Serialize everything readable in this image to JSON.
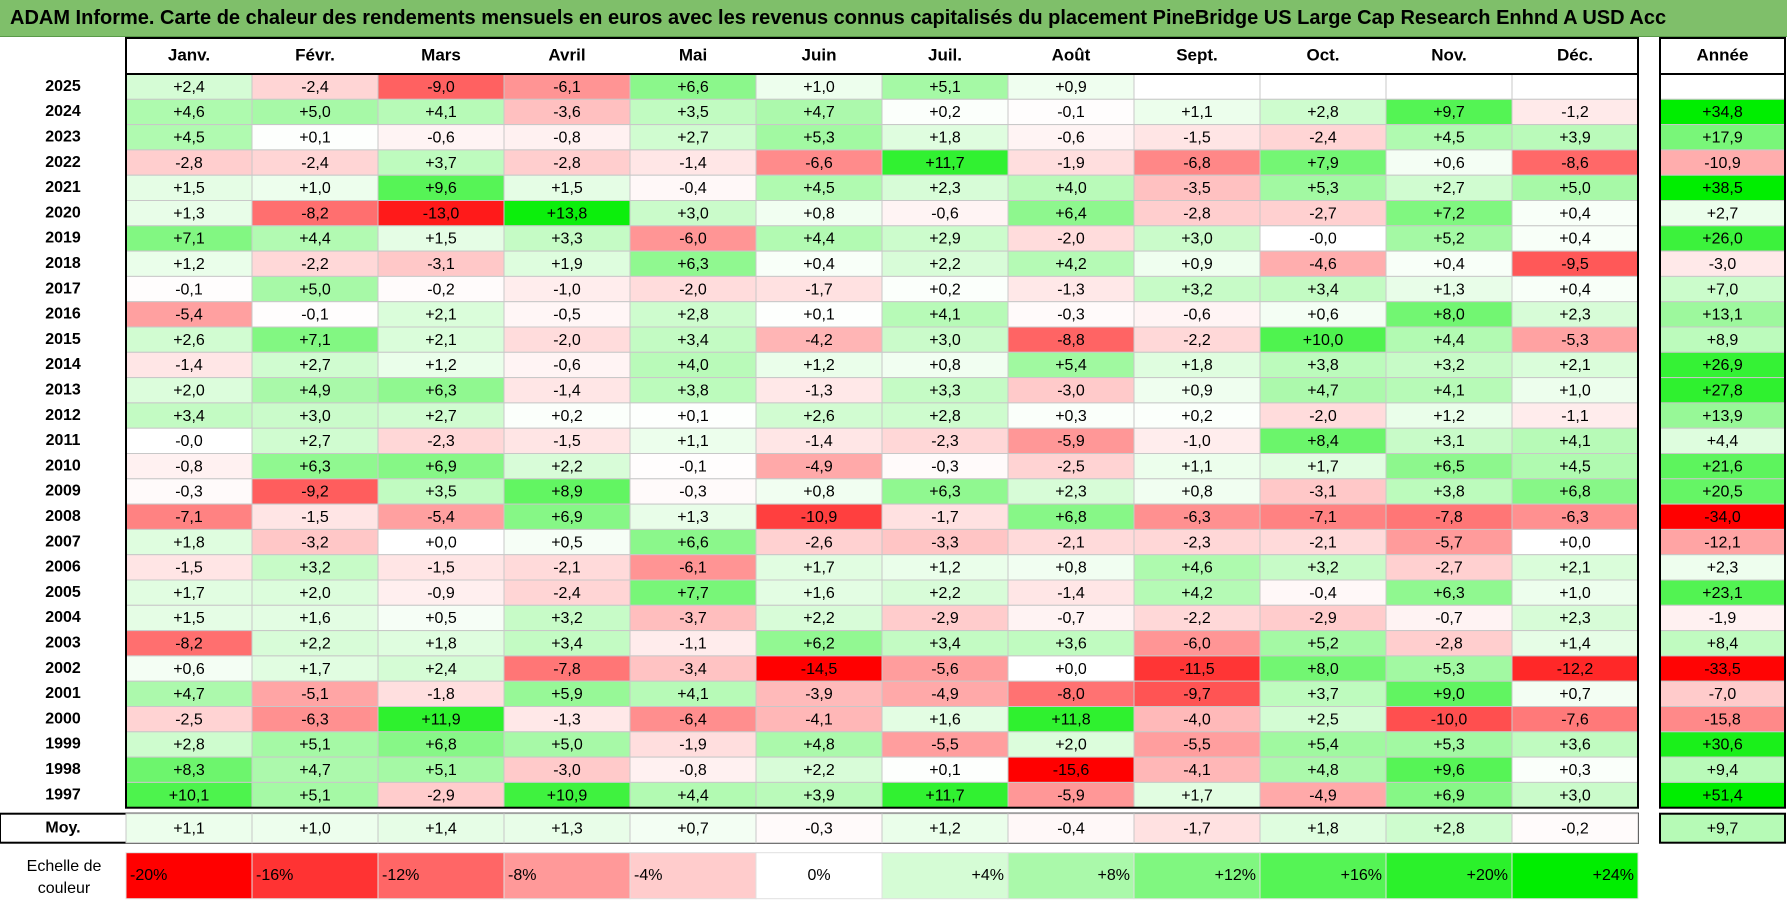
{
  "title": "ADAM Informe. Carte de chaleur des rendements mensuels en euros avec les revenus connus capitalisés du placement PineBridge US Large Cap Research Enhnd A USD Acc",
  "colors": {
    "title_bg": "#7fbf6a",
    "neg_max": "#ff0000",
    "pos_max": "#00ee00",
    "neutral": "#ffffff"
  },
  "chart_data": {
    "type": "heatmap",
    "months": [
      "Janv.",
      "Févr.",
      "Mars",
      "Avril",
      "Mai",
      "Juin",
      "Juil.",
      "Août",
      "Sept.",
      "Oct.",
      "Nov.",
      "Déc."
    ],
    "year_header": "Année",
    "rows": [
      {
        "year": "2025",
        "months": [
          "+2,4",
          "-2,4",
          "-9,0",
          "-6,1",
          "+6,6",
          "+1,0",
          "+5,1",
          "+0,9",
          "",
          "",
          "",
          ""
        ],
        "annual": ""
      },
      {
        "year": "2024",
        "months": [
          "+4,6",
          "+5,0",
          "+4,1",
          "-3,6",
          "+3,5",
          "+4,7",
          "+0,2",
          "-0,1",
          "+1,1",
          "+2,8",
          "+9,7",
          "-1,2"
        ],
        "annual": "+34,8"
      },
      {
        "year": "2023",
        "months": [
          "+4,5",
          "+0,1",
          "-0,6",
          "-0,8",
          "+2,7",
          "+5,3",
          "+1,8",
          "-0,6",
          "-1,5",
          "-2,4",
          "+4,5",
          "+3,9"
        ],
        "annual": "+17,9"
      },
      {
        "year": "2022",
        "months": [
          "-2,8",
          "-2,4",
          "+3,7",
          "-2,8",
          "-1,4",
          "-6,6",
          "+11,7",
          "-1,9",
          "-6,8",
          "+7,9",
          "+0,6",
          "-8,6"
        ],
        "annual": "-10,9"
      },
      {
        "year": "2021",
        "months": [
          "+1,5",
          "+1,0",
          "+9,6",
          "+1,5",
          "-0,4",
          "+4,5",
          "+2,3",
          "+4,0",
          "-3,5",
          "+5,3",
          "+2,7",
          "+5,0"
        ],
        "annual": "+38,5"
      },
      {
        "year": "2020",
        "months": [
          "+1,3",
          "-8,2",
          "-13,0",
          "+13,8",
          "+3,0",
          "+0,8",
          "-0,6",
          "+6,4",
          "-2,8",
          "-2,7",
          "+7,2",
          "+0,4"
        ],
        "annual": "+2,7"
      },
      {
        "year": "2019",
        "months": [
          "+7,1",
          "+4,4",
          "+1,5",
          "+3,3",
          "-6,0",
          "+4,4",
          "+2,9",
          "-2,0",
          "+3,0",
          "-0,0",
          "+5,2",
          "+0,4"
        ],
        "annual": "+26,0"
      },
      {
        "year": "2018",
        "months": [
          "+1,2",
          "-2,2",
          "-3,1",
          "+1,9",
          "+6,3",
          "+0,4",
          "+2,2",
          "+4,2",
          "+0,9",
          "-4,6",
          "+0,4",
          "-9,5"
        ],
        "annual": "-3,0"
      },
      {
        "year": "2017",
        "months": [
          "-0,1",
          "+5,0",
          "-0,2",
          "-1,0",
          "-2,0",
          "-1,7",
          "+0,2",
          "-1,3",
          "+3,2",
          "+3,4",
          "+1,3",
          "+0,4"
        ],
        "annual": "+7,0"
      },
      {
        "year": "2016",
        "months": [
          "-5,4",
          "-0,1",
          "+2,1",
          "-0,5",
          "+2,8",
          "+0,1",
          "+4,1",
          "-0,3",
          "-0,6",
          "+0,6",
          "+8,0",
          "+2,3"
        ],
        "annual": "+13,1"
      },
      {
        "year": "2015",
        "months": [
          "+2,6",
          "+7,1",
          "+2,1",
          "-2,0",
          "+3,4",
          "-4,2",
          "+3,0",
          "-8,8",
          "-2,2",
          "+10,0",
          "+4,4",
          "-5,3"
        ],
        "annual": "+8,9"
      },
      {
        "year": "2014",
        "months": [
          "-1,4",
          "+2,7",
          "+1,2",
          "-0,6",
          "+4,0",
          "+1,2",
          "+0,8",
          "+5,4",
          "+1,8",
          "+3,8",
          "+3,2",
          "+2,1"
        ],
        "annual": "+26,9"
      },
      {
        "year": "2013",
        "months": [
          "+2,0",
          "+4,9",
          "+6,3",
          "-1,4",
          "+3,8",
          "-1,3",
          "+3,3",
          "-3,0",
          "+0,9",
          "+4,7",
          "+4,1",
          "+1,0"
        ],
        "annual": "+27,8"
      },
      {
        "year": "2012",
        "months": [
          "+3,4",
          "+3,0",
          "+2,7",
          "+0,2",
          "+0,1",
          "+2,6",
          "+2,8",
          "+0,3",
          "+0,2",
          "-2,0",
          "+1,2",
          "-1,1"
        ],
        "annual": "+13,9"
      },
      {
        "year": "2011",
        "months": [
          "-0,0",
          "+2,7",
          "-2,3",
          "-1,5",
          "+1,1",
          "-1,4",
          "-2,3",
          "-5,9",
          "-1,0",
          "+8,4",
          "+3,1",
          "+4,1"
        ],
        "annual": "+4,4"
      },
      {
        "year": "2010",
        "months": [
          "-0,8",
          "+6,3",
          "+6,9",
          "+2,2",
          "-0,1",
          "-4,9",
          "-0,3",
          "-2,5",
          "+1,1",
          "+1,7",
          "+6,5",
          "+4,5"
        ],
        "annual": "+21,6"
      },
      {
        "year": "2009",
        "months": [
          "-0,3",
          "-9,2",
          "+3,5",
          "+8,9",
          "-0,3",
          "+0,8",
          "+6,3",
          "+2,3",
          "+0,8",
          "-3,1",
          "+3,8",
          "+6,8"
        ],
        "annual": "+20,5"
      },
      {
        "year": "2008",
        "months": [
          "-7,1",
          "-1,5",
          "-5,4",
          "+6,9",
          "+1,3",
          "-10,9",
          "-1,7",
          "+6,8",
          "-6,3",
          "-7,1",
          "-7,8",
          "-6,3"
        ],
        "annual": "-34,0"
      },
      {
        "year": "2007",
        "months": [
          "+1,8",
          "-3,2",
          "+0,0",
          "+0,5",
          "+6,6",
          "-2,6",
          "-3,3",
          "-2,1",
          "-2,3",
          "-2,1",
          "-5,7",
          "+0,0"
        ],
        "annual": "-12,1"
      },
      {
        "year": "2006",
        "months": [
          "-1,5",
          "+3,2",
          "-1,5",
          "-2,1",
          "-6,1",
          "+1,7",
          "+1,2",
          "+0,8",
          "+4,6",
          "+3,2",
          "-2,7",
          "+2,1"
        ],
        "annual": "+2,3"
      },
      {
        "year": "2005",
        "months": [
          "+1,7",
          "+2,0",
          "-0,9",
          "-2,4",
          "+7,7",
          "+1,6",
          "+2,2",
          "-1,4",
          "+4,2",
          "-0,4",
          "+6,3",
          "+1,0"
        ],
        "annual": "+23,1"
      },
      {
        "year": "2004",
        "months": [
          "+1,5",
          "+1,6",
          "+0,5",
          "+3,2",
          "-3,7",
          "+2,2",
          "-2,9",
          "-0,7",
          "-2,2",
          "-2,9",
          "-0,7",
          "+2,3"
        ],
        "annual": "-1,9"
      },
      {
        "year": "2003",
        "months": [
          "-8,2",
          "+2,2",
          "+1,8",
          "+3,4",
          "-1,1",
          "+6,2",
          "+3,4",
          "+3,6",
          "-6,0",
          "+5,2",
          "-2,8",
          "+1,4"
        ],
        "annual": "+8,4"
      },
      {
        "year": "2002",
        "months": [
          "+0,6",
          "+1,7",
          "+2,4",
          "-7,8",
          "-3,4",
          "-14,5",
          "-5,6",
          "+0,0",
          "-11,5",
          "+8,0",
          "+5,3",
          "-12,2"
        ],
        "annual": "-33,5"
      },
      {
        "year": "2001",
        "months": [
          "+4,7",
          "-5,1",
          "-1,8",
          "+5,9",
          "+4,1",
          "-3,9",
          "-4,9",
          "-8,0",
          "-9,7",
          "+3,7",
          "+9,0",
          "+0,7"
        ],
        "annual": "-7,0"
      },
      {
        "year": "2000",
        "months": [
          "-2,5",
          "-6,3",
          "+11,9",
          "-1,3",
          "-6,4",
          "-4,1",
          "+1,6",
          "+11,8",
          "-4,0",
          "+2,5",
          "-10,0",
          "-7,6"
        ],
        "annual": "-15,8"
      },
      {
        "year": "1999",
        "months": [
          "+2,8",
          "+5,1",
          "+6,8",
          "+5,0",
          "-1,9",
          "+4,8",
          "-5,5",
          "+2,0",
          "-5,5",
          "+5,4",
          "+5,3",
          "+3,6"
        ],
        "annual": "+30,6"
      },
      {
        "year": "1998",
        "months": [
          "+8,3",
          "+4,7",
          "+5,1",
          "-3,0",
          "-0,8",
          "+2,2",
          "+0,1",
          "-15,6",
          "-4,1",
          "+4,8",
          "+9,6",
          "+0,3"
        ],
        "annual": "+9,4"
      },
      {
        "year": "1997",
        "months": [
          "+10,1",
          "+5,1",
          "-2,9",
          "+10,9",
          "+4,4",
          "+3,9",
          "+11,7",
          "-5,9",
          "+1,7",
          "-4,9",
          "+6,9",
          "+3,0"
        ],
        "annual": "+51,4"
      }
    ],
    "average": {
      "label": "Moy.",
      "months": [
        "+1,1",
        "+1,0",
        "+1,4",
        "+1,3",
        "+0,7",
        "-0,3",
        "+1,2",
        "-0,4",
        "-1,7",
        "+1,8",
        "+2,8",
        "-0,2"
      ],
      "annual": "+9,7"
    },
    "scale": {
      "label_line1": "Echelle de",
      "label_line2": "couleur",
      "labels": [
        "-20%",
        "-16%",
        "-12%",
        "-8%",
        "-4%",
        "0%",
        "+4%",
        "+8%",
        "+12%",
        "+16%",
        "+20%",
        "+24%"
      ],
      "values": [
        -20,
        -16,
        -12,
        -8,
        -4,
        0,
        4,
        8,
        12,
        16,
        20,
        24
      ]
    }
  }
}
